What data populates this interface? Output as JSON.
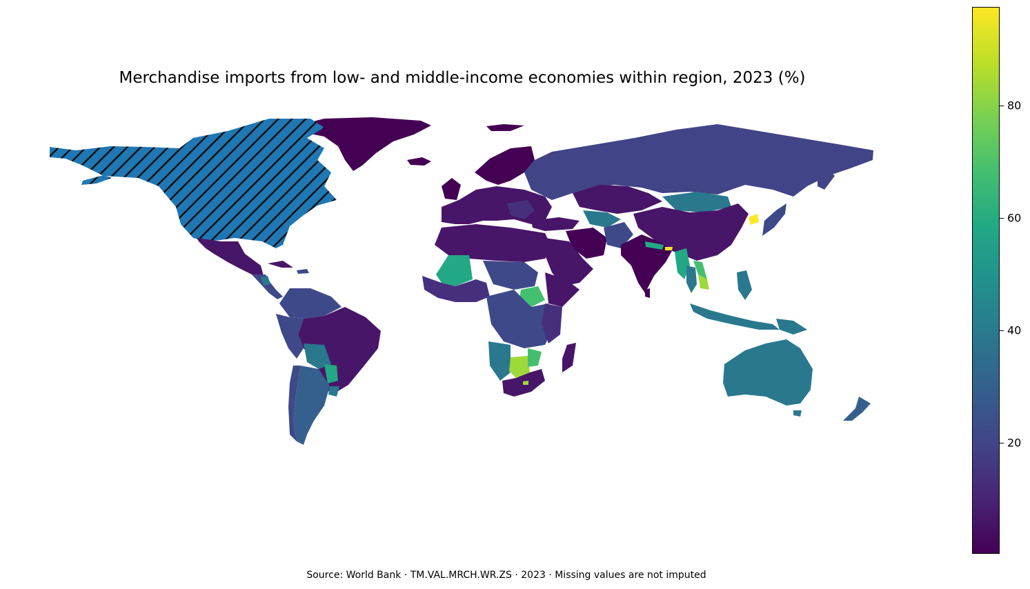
{
  "title": "Merchandise imports from low- and middle-income economies within region, 2023 (%)",
  "source": "Source: World Bank · TM.VAL.MRCH.WR.ZS · 2023 · Missing values are not imputed",
  "colorbar": {
    "colormap": "viridis",
    "min": 0,
    "max": 97,
    "ticks": [
      {
        "label": "20",
        "value": 20
      },
      {
        "label": "40",
        "value": 40
      },
      {
        "label": "60",
        "value": 60
      },
      {
        "label": "80",
        "value": 80
      }
    ]
  },
  "missing_style": {
    "fill": "#1f77b4",
    "hatch": "diagonal",
    "regions": [
      "North America (Canada, United States)"
    ]
  },
  "colors": {
    "very_low": "#440154",
    "low": "#481668",
    "low_mid": "#46307e",
    "mid": "#3e4989",
    "teal": "#2a788e",
    "green_teal": "#22a884",
    "green": "#44bf70",
    "lime": "#9ed93a",
    "yellow": "#fde725",
    "missing": "#1f77b4"
  }
}
